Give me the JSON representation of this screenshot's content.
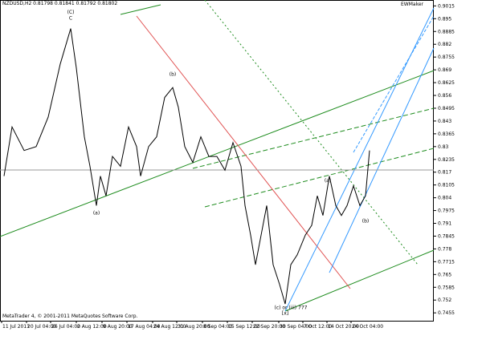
{
  "chart_data": {
    "type": "line",
    "title": "NZDUSD,H2 0.81798 0.81841 0.81792 0.81802",
    "indicator": "EWMaker",
    "footer": "MetaTrader 4, © 2001-2011 MetaQuotes Software Corp.",
    "series": [
      {
        "name": "NZDUSD,H2",
        "color": "#000000",
        "x": [
          5,
          15,
          30,
          45,
          60,
          75,
          88,
          95,
          105,
          112,
          120,
          125,
          132,
          140,
          150,
          160,
          170,
          175,
          185,
          195,
          205,
          215,
          222,
          230,
          240,
          250,
          260,
          270,
          280,
          290,
          300,
          305,
          312,
          318,
          325,
          332,
          340,
          348,
          355,
          362,
          370,
          380,
          388,
          395,
          402,
          410,
          418,
          425,
          432,
          440,
          448,
          455,
          460
        ],
        "values": [
          0.815,
          0.84,
          0.828,
          0.83,
          0.845,
          0.872,
          0.89,
          0.87,
          0.835,
          0.82,
          0.8,
          0.815,
          0.805,
          0.825,
          0.82,
          0.84,
          0.83,
          0.815,
          0.83,
          0.835,
          0.855,
          0.86,
          0.85,
          0.83,
          0.822,
          0.835,
          0.825,
          0.825,
          0.818,
          0.832,
          0.82,
          0.8,
          0.785,
          0.77,
          0.785,
          0.8,
          0.77,
          0.76,
          0.75,
          0.77,
          0.775,
          0.785,
          0.79,
          0.805,
          0.795,
          0.815,
          0.8,
          0.795,
          0.8,
          0.81,
          0.8,
          0.805,
          0.828
        ]
      }
    ],
    "xlim": [
      0,
      540
    ],
    "xticks": [
      {
        "value": 2,
        "label": "11 Jul 2011"
      },
      {
        "value": 33,
        "label": "20 Jul 04:00"
      },
      {
        "value": 63,
        "label": "26 Jul 04:00"
      },
      {
        "value": 95,
        "label": "2 Aug 12:00"
      },
      {
        "value": 127,
        "label": "9 Aug 20:00"
      },
      {
        "value": 158,
        "label": "17 Aug 04:00"
      },
      {
        "value": 190,
        "label": "24 Aug 12:00"
      },
      {
        "value": 220,
        "label": "31 Aug 20:00"
      },
      {
        "value": 252,
        "label": "8 Sep 04:00"
      },
      {
        "value": 283,
        "label": "15 Sep 12:00"
      },
      {
        "value": 314,
        "label": "22 Sep 20:00"
      },
      {
        "value": 347,
        "label": "30 Sep 04:00"
      },
      {
        "value": 377,
        "label": "7 Oct 12:00"
      },
      {
        "value": 407,
        "label": "14 Oct 20:00"
      },
      {
        "value": 437,
        "label": "24 Oct 04:00"
      }
    ],
    "ylim": [
      0.7415,
      0.9045
    ],
    "yticks": [
      0.9015,
      0.895,
      0.8885,
      0.882,
      0.8755,
      0.869,
      0.8625,
      0.856,
      0.8495,
      0.843,
      0.8365,
      0.83,
      0.8235,
      0.817,
      0.8105,
      0.804,
      0.7975,
      0.791,
      0.7845,
      0.778,
      0.7715,
      0.765,
      0.7585,
      0.752,
      0.7455
    ],
    "annotations": [
      {
        "text": "(C)",
        "x": 88,
        "y": 0.8975,
        "color": "#0000cc"
      },
      {
        "text": "C",
        "x": 88,
        "y": 0.8945,
        "color": "#cc0000"
      },
      {
        "text": "(b)",
        "x": 215,
        "y": 0.866,
        "color": "#008080"
      },
      {
        "text": "(a)",
        "x": 120,
        "y": 0.7955,
        "color": "#008080"
      },
      {
        "text": "(c) or (iii) 777",
        "x": 362,
        "y": 0.7475,
        "color": "#008080"
      },
      {
        "text": "[x]",
        "x": 355,
        "y": 0.7445,
        "color": "#008000"
      },
      {
        "text": "(b)",
        "x": 455,
        "y": 0.7915,
        "color": "#008080"
      },
      {
        "text": "(a)",
        "x": 408,
        "y": 0.812,
        "color": "#008080"
      }
    ]
  }
}
